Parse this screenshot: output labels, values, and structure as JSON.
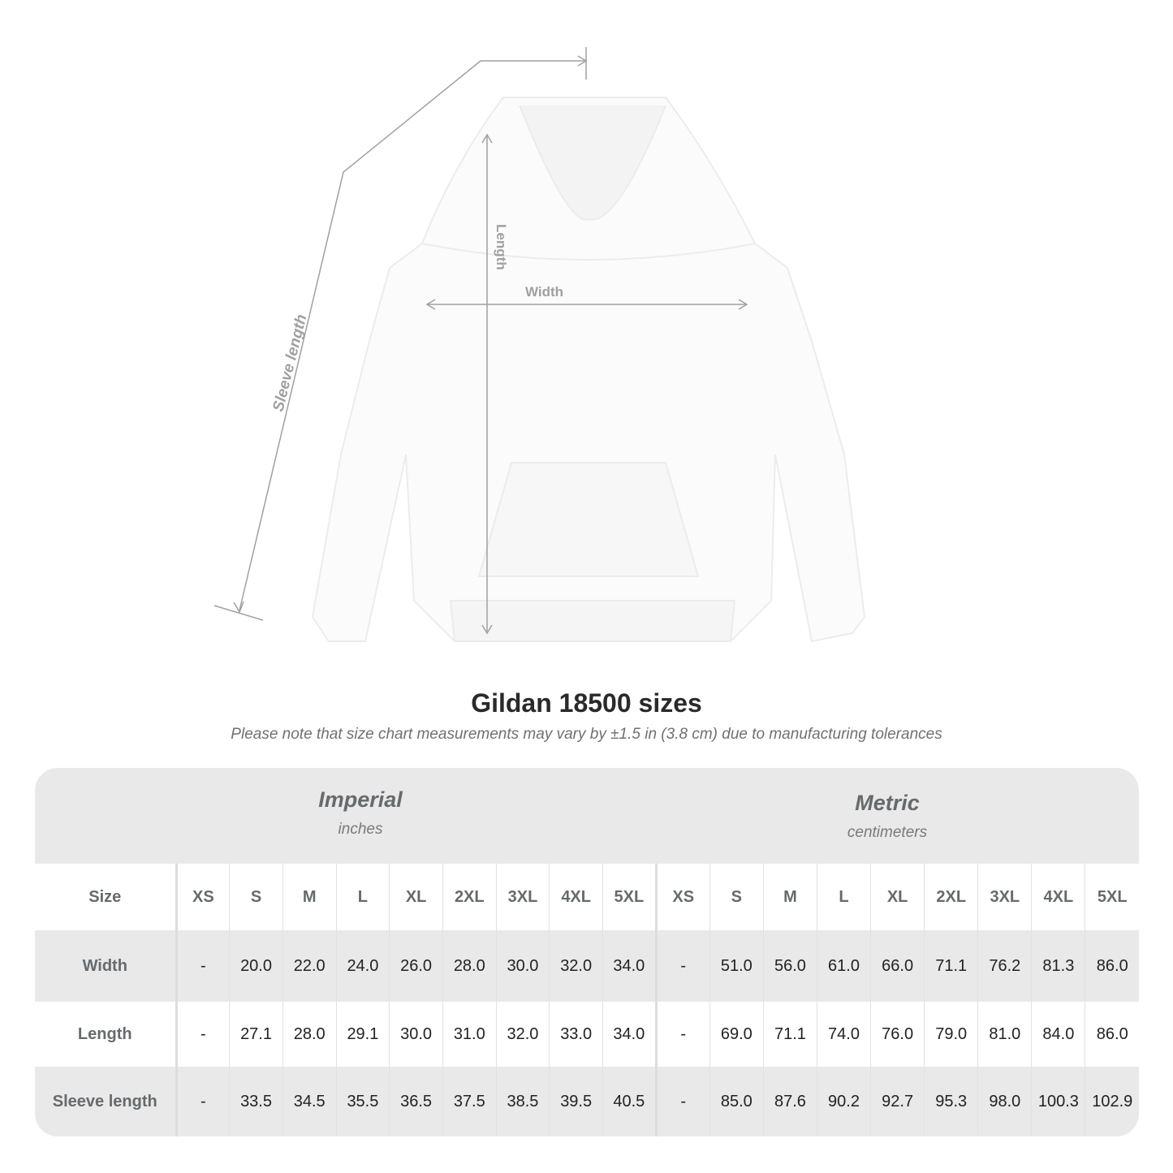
{
  "diagram": {
    "labels": {
      "sleeve": "Sleeve length",
      "length": "Length",
      "width": "Width"
    },
    "line_color": "#a0a0a0"
  },
  "header": {
    "title": "Gildan 18500 sizes",
    "note": "Please note that size chart measurements may vary by ±1.5 in (3.8 cm) due to manufacturing tolerances"
  },
  "table": {
    "imperial": {
      "name": "Imperial",
      "unit": "inches"
    },
    "metric": {
      "name": "Metric",
      "unit": "centimeters"
    },
    "size_label": "Size",
    "sizes": [
      "XS",
      "S",
      "M",
      "L",
      "XL",
      "2XL",
      "3XL",
      "4XL",
      "5XL"
    ],
    "rows": [
      {
        "label": "Width",
        "imperial": [
          "-",
          "20.0",
          "22.0",
          "24.0",
          "26.0",
          "28.0",
          "30.0",
          "32.0",
          "34.0"
        ],
        "metric": [
          "-",
          "51.0",
          "56.0",
          "61.0",
          "66.0",
          "71.1",
          "76.2",
          "81.3",
          "86.0"
        ]
      },
      {
        "label": "Length",
        "imperial": [
          "-",
          "27.1",
          "28.0",
          "29.1",
          "30.0",
          "31.0",
          "32.0",
          "33.0",
          "34.0"
        ],
        "metric": [
          "-",
          "69.0",
          "71.1",
          "74.0",
          "76.0",
          "79.0",
          "81.0",
          "84.0",
          "86.0"
        ]
      },
      {
        "label": "Sleeve length",
        "imperial": [
          "-",
          "33.5",
          "34.5",
          "35.5",
          "36.5",
          "37.5",
          "38.5",
          "39.5",
          "40.5"
        ],
        "metric": [
          "-",
          "85.0",
          "87.6",
          "90.2",
          "92.7",
          "95.3",
          "98.0",
          "100.3",
          "102.9"
        ]
      }
    ]
  }
}
